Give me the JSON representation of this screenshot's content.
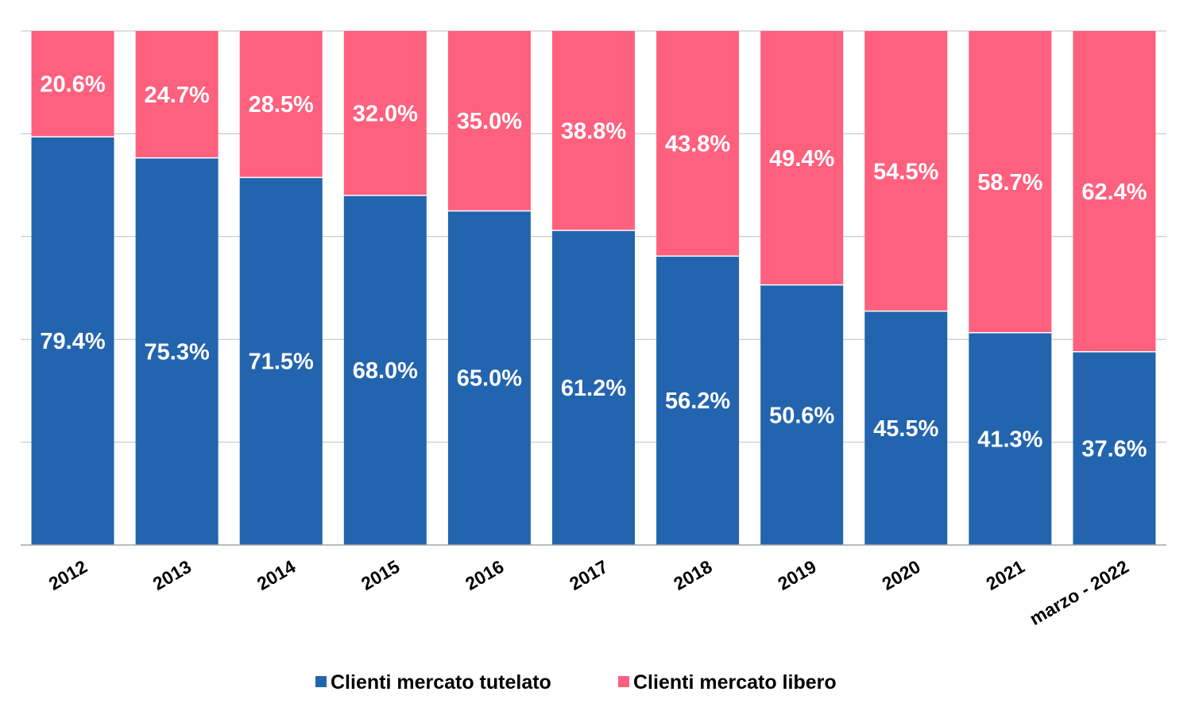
{
  "chart_data": {
    "type": "bar",
    "stacked": true,
    "percent_stacked": true,
    "categories": [
      "2012",
      "2013",
      "2014",
      "2015",
      "2016",
      "2017",
      "2018",
      "2019",
      "2020",
      "2021",
      "marzo - 2022"
    ],
    "series": [
      {
        "name": "Clienti mercato tutelato",
        "color": "#2364ae",
        "values": [
          79.4,
          75.3,
          71.5,
          68.0,
          65.0,
          61.2,
          56.2,
          50.6,
          45.5,
          41.3,
          37.6
        ],
        "labels": [
          "79.4%",
          "75.3%",
          "71.5%",
          "68.0%",
          "65.0%",
          "61.2%",
          "56.2%",
          "50.6%",
          "45.5%",
          "41.3%",
          "37.6%"
        ]
      },
      {
        "name": "Clienti mercato libero",
        "color": "#ff607e",
        "values": [
          20.6,
          24.7,
          28.5,
          32.0,
          35.0,
          38.8,
          43.8,
          49.4,
          54.5,
          58.7,
          62.4
        ],
        "labels": [
          "20.6%",
          "24.7%",
          "28.5%",
          "32.0%",
          "35.0%",
          "38.8%",
          "43.8%",
          "49.4%",
          "54.5%",
          "58.7%",
          "62.4%"
        ]
      }
    ],
    "ylim": [
      0,
      100
    ],
    "y_gridlines": [
      0,
      20,
      40,
      60,
      80,
      100
    ],
    "y_tick_labels_shown": false,
    "grid": true,
    "legend_position": "bottom",
    "title": "",
    "xlabel": "",
    "ylabel": ""
  }
}
